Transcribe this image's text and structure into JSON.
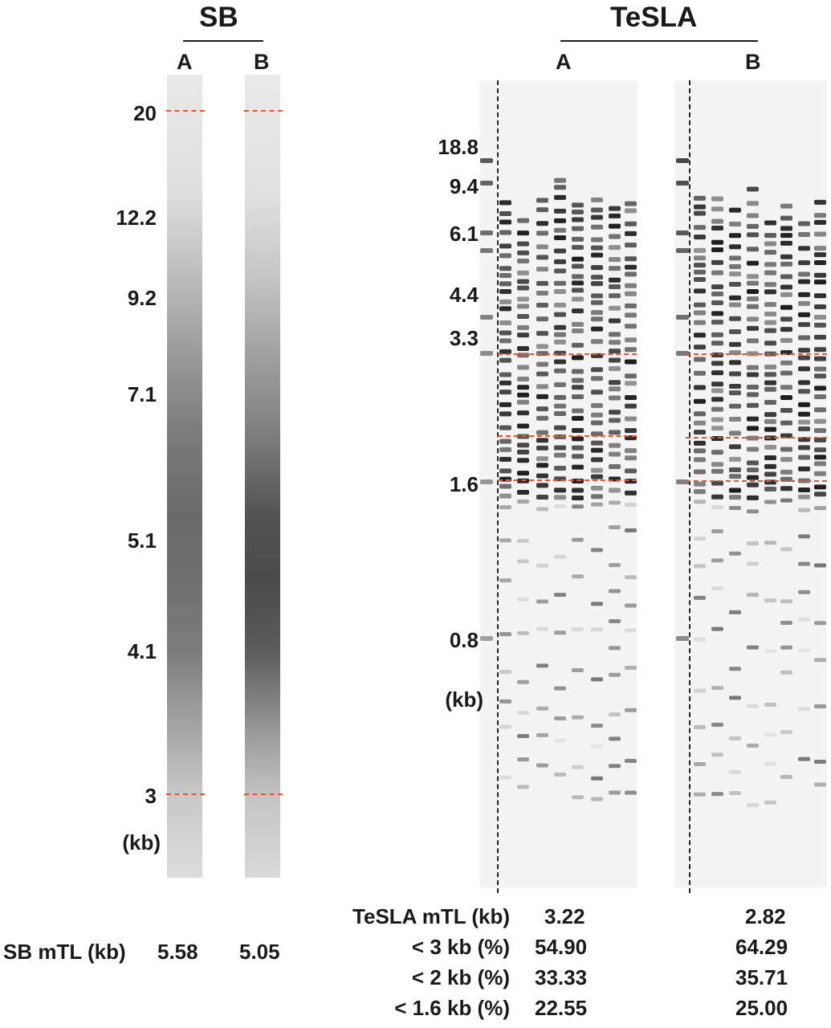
{
  "sb": {
    "title": "SB",
    "lanes": [
      "A",
      "B"
    ],
    "markers": [
      "20",
      "12.2",
      "9.2",
      "7.1",
      "5.1",
      "4.1",
      "3"
    ],
    "unit": "(kb)",
    "mtl_label": "SB mTL (kb)",
    "mtl_values": [
      "5.58",
      "5.05"
    ],
    "dashed_markers": [
      "20",
      "3"
    ]
  },
  "tesla": {
    "title": "TeSLA",
    "lanes": [
      "A",
      "B"
    ],
    "markers": [
      "18.8",
      "9.4",
      "6.1",
      "4.4",
      "3.3",
      "1.6",
      "0.8"
    ],
    "unit": "(kb)",
    "stats": [
      {
        "label": "TeSLA mTL (kb)",
        "a": "3.22",
        "b": "2.82"
      },
      {
        "label": "< 3 kb (%)",
        "a": "54.90",
        "b": "64.29"
      },
      {
        "label": "< 2 kb (%)",
        "a": "33.33",
        "b": "35.71"
      },
      {
        "label": "< 1.6 kb (%)",
        "a": "22.55",
        "b": "25.00"
      }
    ]
  },
  "colors": {
    "dash_red": "#e4572e",
    "band_dark": "#1f1f1f",
    "gel_bg": "#f3f3f3"
  }
}
